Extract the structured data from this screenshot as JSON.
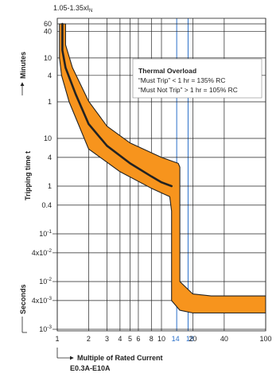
{
  "chart_data": {
    "type": "area",
    "top_label": {
      "base": "1.05-1.35xI",
      "sub": "N"
    },
    "xlabel": "Multiple of Rated Current",
    "xlabel_sub": "E0.3A-E10A",
    "ylabel": "Tripping time t",
    "ylabel_minutes": "Minutes",
    "ylabel_seconds": "Seconds",
    "xscale": "log",
    "yscale": "log",
    "xlim": [
      1,
      100
    ],
    "grid": true,
    "x_ticks": [
      {
        "v": 1,
        "label": "1"
      },
      {
        "v": 2,
        "label": "2"
      },
      {
        "v": 3,
        "label": "3"
      },
      {
        "v": 4,
        "label": "4"
      },
      {
        "v": 5,
        "label": "5"
      },
      {
        "v": 6,
        "label": "6"
      },
      {
        "v": 8,
        "label": "8"
      },
      {
        "v": 10,
        "label": "10"
      },
      {
        "v": 14,
        "label": "14",
        "highlight": true
      },
      {
        "v": 18,
        "label": "18",
        "highlight": true
      },
      {
        "v": 20,
        "label": "20"
      },
      {
        "v": 40,
        "label": "40"
      },
      {
        "v": 100,
        "label": "100"
      }
    ],
    "y_ticks_minutes": [
      {
        "v": 60,
        "label": "60"
      },
      {
        "v": 40,
        "label": "40"
      },
      {
        "v": 10,
        "label": "10"
      },
      {
        "v": 4,
        "label": "4"
      },
      {
        "v": 1,
        "label": "1"
      }
    ],
    "y_ticks_seconds": [
      {
        "v": 10,
        "label": "10"
      },
      {
        "v": 4,
        "label": "4"
      },
      {
        "v": 1,
        "label": "1"
      },
      {
        "v": 0.4,
        "label": "0.4"
      },
      {
        "v": 0.1,
        "label": "10",
        "exp": "-1"
      },
      {
        "v": 0.04,
        "label": "4x10",
        "exp": "-2"
      },
      {
        "v": 0.01,
        "label": "10",
        "exp": "-2"
      },
      {
        "v": 0.004,
        "label": "4x10",
        "exp": "-3"
      },
      {
        "v": 0.001,
        "label": "10",
        "exp": "-3"
      }
    ],
    "legend_box": {
      "title": "Thermal Overload",
      "line1": "“Must Trip” < 1 hr = 135% RC",
      "line2": "“Must Not Trip” > 1 hr = 105% RC"
    },
    "band": {
      "name": "tripping band",
      "color": "#f7941d",
      "upper": [
        {
          "x": 1.2,
          "y_minutes": 60
        },
        {
          "x": 1.2,
          "y_minutes": 20
        },
        {
          "x": 1.4,
          "y_minutes": 6
        },
        {
          "x": 2,
          "y_seconds": 60
        },
        {
          "x": 3,
          "y_seconds": 18
        },
        {
          "x": 5,
          "y_seconds": 8
        },
        {
          "x": 10,
          "y_seconds": 4
        },
        {
          "x": 14.5,
          "y_seconds": 3
        },
        {
          "x": 15,
          "y_seconds": 2.5
        },
        {
          "x": 15,
          "y_seconds": 0.01
        },
        {
          "x": 20,
          "y_seconds": 0.0055
        },
        {
          "x": 30,
          "y_seconds": 0.005
        },
        {
          "x": 100,
          "y_seconds": 0.005
        }
      ],
      "lower": [
        {
          "x": 1.05,
          "y_minutes": 60
        },
        {
          "x": 1.05,
          "y_minutes": 10
        },
        {
          "x": 1.1,
          "y_minutes": 4
        },
        {
          "x": 1.3,
          "y_minutes": 1
        },
        {
          "x": 2,
          "y_seconds": 6
        },
        {
          "x": 4,
          "y_seconds": 2
        },
        {
          "x": 8,
          "y_seconds": 0.9
        },
        {
          "x": 12,
          "y_seconds": 0.6
        },
        {
          "x": 12.5,
          "y_seconds": 0.3
        },
        {
          "x": 12.5,
          "y_seconds": 0.004
        },
        {
          "x": 15,
          "y_seconds": 0.0025
        },
        {
          "x": 20,
          "y_seconds": 0.0022
        },
        {
          "x": 100,
          "y_seconds": 0.0022
        }
      ]
    },
    "mean_curve": [
      {
        "x": 1.12,
        "y_minutes": 60
      },
      {
        "x": 1.12,
        "y_minutes": 15
      },
      {
        "x": 1.2,
        "y_minutes": 6
      },
      {
        "x": 1.5,
        "y_minutes": 1.5
      },
      {
        "x": 2,
        "y_seconds": 20
      },
      {
        "x": 3,
        "y_seconds": 7
      },
      {
        "x": 5,
        "y_seconds": 3
      },
      {
        "x": 8,
        "y_seconds": 1.6
      },
      {
        "x": 10,
        "y_seconds": 1.2
      },
      {
        "x": 12.5,
        "y_seconds": 1
      }
    ]
  }
}
